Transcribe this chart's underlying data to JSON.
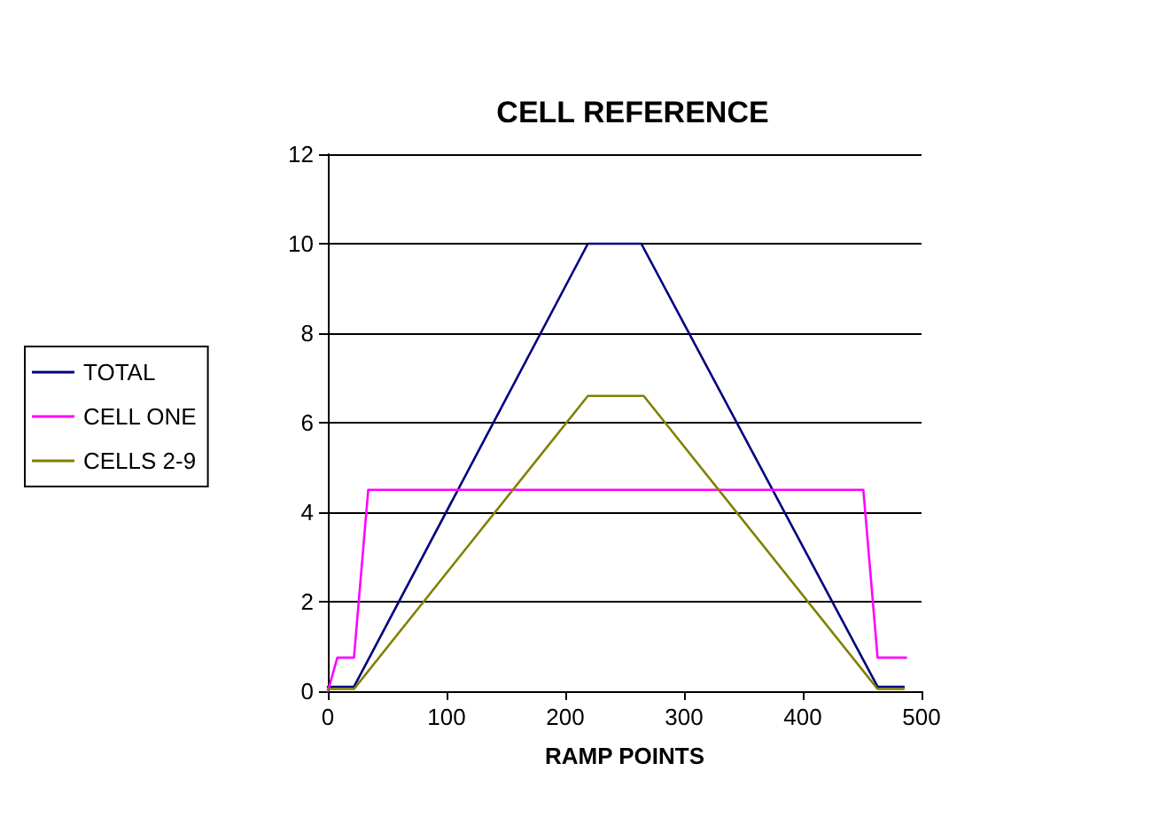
{
  "chart_data": {
    "type": "line",
    "title": "CELL REFERENCE",
    "xlabel": "RAMP POINTS",
    "xlim": [
      0,
      500
    ],
    "xticks": [
      0,
      100,
      200,
      300,
      400,
      500
    ],
    "ylim": [
      0,
      12
    ],
    "yticks": [
      0,
      2,
      4,
      6,
      8,
      10,
      12
    ],
    "grid": "y",
    "legend": "left",
    "marker": "none",
    "line_style": "solid",
    "series": [
      {
        "name": "TOTAL",
        "color": "#000080",
        "x": [
          0,
          22,
          219,
          264,
          463,
          485
        ],
        "values": [
          0.1,
          0.1,
          10,
          10,
          0.1,
          0.1
        ]
      },
      {
        "name": "CELL ONE",
        "color": "#ff00ff",
        "x": [
          0,
          8,
          22,
          34,
          451,
          463,
          487
        ],
        "values": [
          0,
          0.75,
          0.75,
          4.5,
          4.5,
          0.75,
          0.75
        ]
      },
      {
        "name": "CELLS 2-9",
        "color": "#808000",
        "x": [
          0,
          22,
          219,
          266,
          463,
          485
        ],
        "values": [
          0.05,
          0.05,
          6.6,
          6.6,
          0.05,
          0.05
        ]
      }
    ]
  }
}
